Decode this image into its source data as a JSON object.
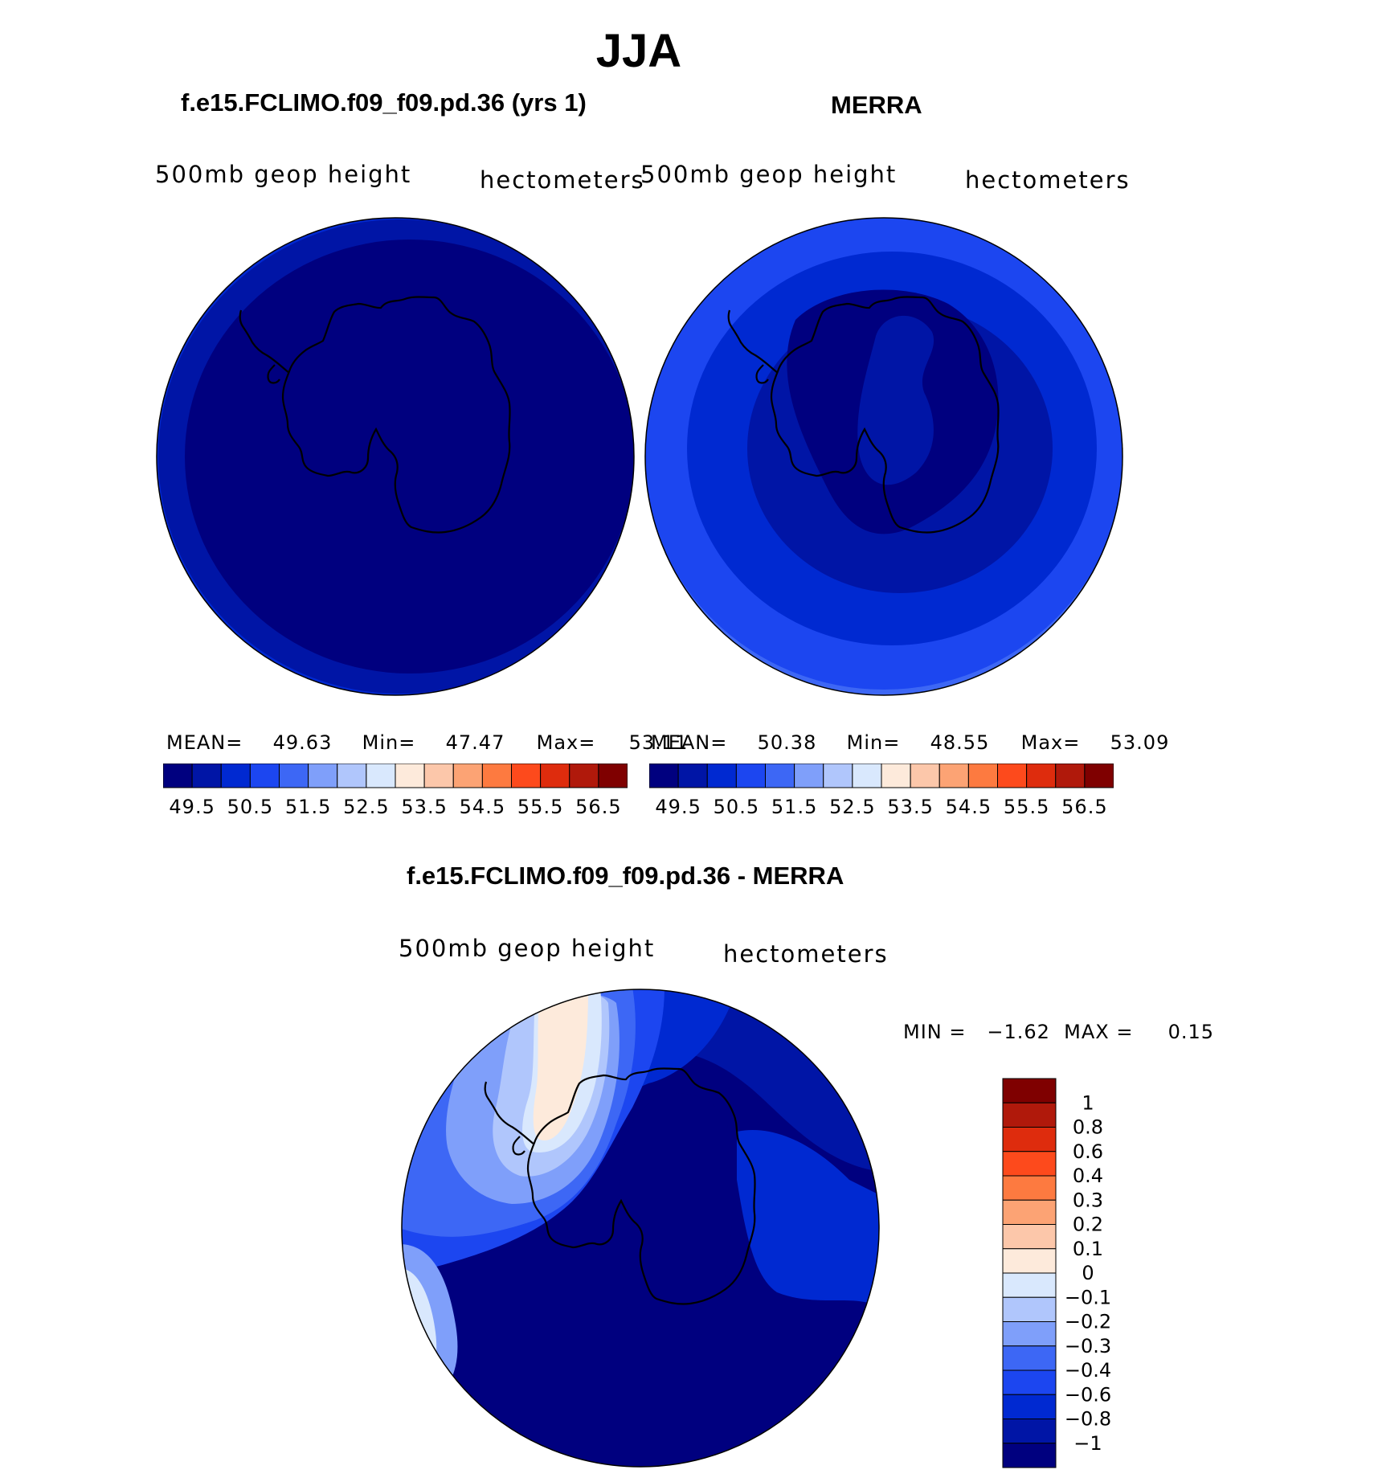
{
  "figure": {
    "title": "JJA"
  },
  "panels": [
    {
      "case_title": "f.e15.FCLIMO.f09_f09.pd.36 (yrs 1)",
      "variable": "500mb  geop  height",
      "units": "hectometers",
      "mean_label": "MEAN=",
      "mean": "49.63",
      "min_label": "Min=",
      "min": "47.47",
      "max_label": "Max=",
      "max": "53.11",
      "fill_levels": [
        "#00007f",
        "#0015a6",
        "#0029d1",
        "#1c46f0",
        "#3d67f5",
        "#7f9ffa",
        "#b0c6fc",
        "#d9e8fd",
        "#fdeadb"
      ]
    },
    {
      "case_title": "MERRA",
      "variable": "500mb  geop  height",
      "units": "hectometers",
      "mean_label": "MEAN=",
      "mean": "50.38",
      "min_label": "Min=",
      "min": "48.55",
      "max_label": "Max=",
      "max": "53.09",
      "fill_levels": [
        "#00007f",
        "#0015a6",
        "#0029d1",
        "#1c46f0",
        "#3d67f5",
        "#7f9ffa",
        "#b0c6fc",
        "#d9e8fd",
        "#fdeadb"
      ]
    }
  ],
  "mean_colorbar": {
    "colors": [
      "#00007f",
      "#0015a6",
      "#0029d1",
      "#1c46f0",
      "#3d67f5",
      "#7f9ffa",
      "#b0c6fc",
      "#d9e8fd",
      "#fdeadb",
      "#fcc7aa",
      "#fca374",
      "#fd7a40",
      "#fd4a1c",
      "#de2c0d",
      "#b0190b",
      "#7f0000"
    ],
    "tick_labels": [
      "49.5",
      "50.5",
      "51.5",
      "52.5",
      "53.5",
      "54.5",
      "55.5",
      "56.5"
    ]
  },
  "difference": {
    "case_title": "f.e15.FCLIMO.f09_f09.pd.36 - MERRA",
    "variable": "500mb  geop  height",
    "units": "hectometers",
    "minmax_label": "MIN =   −1.62  MAX =     0.15",
    "colorbar": {
      "colors_top_to_bottom": [
        "#7f0000",
        "#b0190b",
        "#de2c0d",
        "#fd4a1c",
        "#fd7a40",
        "#fca374",
        "#fcc7aa",
        "#fdeadb",
        "#d9e8fd",
        "#b0c6fc",
        "#7f9ffa",
        "#3d67f5",
        "#1c46f0",
        "#0029d1",
        "#0015a6",
        "#00007f"
      ],
      "tick_labels": [
        "1",
        "0.8",
        "0.6",
        "0.4",
        "0.3",
        "0.2",
        "0.1",
        "0",
        "−0.1",
        "−0.2",
        "−0.3",
        "−0.4",
        "−0.6",
        "−0.8",
        "−1"
      ]
    }
  }
}
